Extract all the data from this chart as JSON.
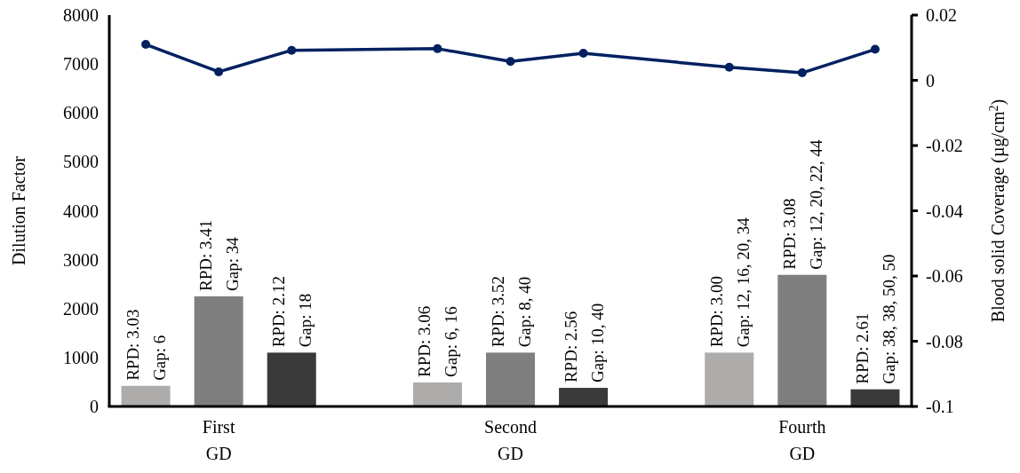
{
  "chart_data": {
    "type": "bar",
    "categories": [
      null,
      "First\nGD",
      null,
      null,
      null,
      "Second\nGD",
      null,
      null,
      null,
      "Fourth\nGD",
      null
    ],
    "series": [
      {
        "colors": [
          "#aeabab",
          "#7f7f7f",
          "#3a3a3a",
          null,
          "#aeabab",
          "#7f7f7f",
          "#3a3a3a",
          null,
          "#aeabab",
          "#7f7f7f",
          "#3a3a3a"
        ],
        "values": [
          420,
          2250,
          1100,
          null,
          490,
          1100,
          380,
          null,
          1100,
          2690,
          350
        ],
        "value_labels": [
          "RPD: 3.03\nGap: 6",
          "RPD: 3.41\nGap: 34",
          "RPD: 2.12\nGap: 18",
          null,
          "RPD: 3.06\nGap: 6, 16",
          "RPD: 3.52\nGap: 8, 40",
          "RPD: 2.56\nGap: 10, 40",
          null,
          "RPD: 3.00\nGap: 12, 16, 20, 34",
          "RPD: 3.08\nGap: 12, 20, 22, 44",
          "RPD: 2.61\nGap: 38, 38, 50, 50"
        ]
      },
      {
        "type": "line",
        "axis": "y2",
        "color": "#002060",
        "marker": "circle",
        "values": [
          0.011,
          0.0026,
          0.0092,
          null,
          0.0097,
          0.0058,
          0.0083,
          null,
          0.004,
          0.0023,
          0.0095
        ]
      }
    ],
    "ylabel": "Dilution Factor",
    "y2label": "Blood solid Coverage (µg/cm$^{2}$)",
    "ylim": [
      0,
      8000
    ],
    "yticks": [
      0,
      1000,
      2000,
      3000,
      4000,
      5000,
      6000,
      7000,
      8000
    ],
    "y2lim": [
      -0.1,
      0.02
    ],
    "y2ticks": [
      -0.1,
      -0.08,
      -0.06,
      -0.04,
      -0.02,
      0,
      0.02
    ],
    "grid": false
  }
}
